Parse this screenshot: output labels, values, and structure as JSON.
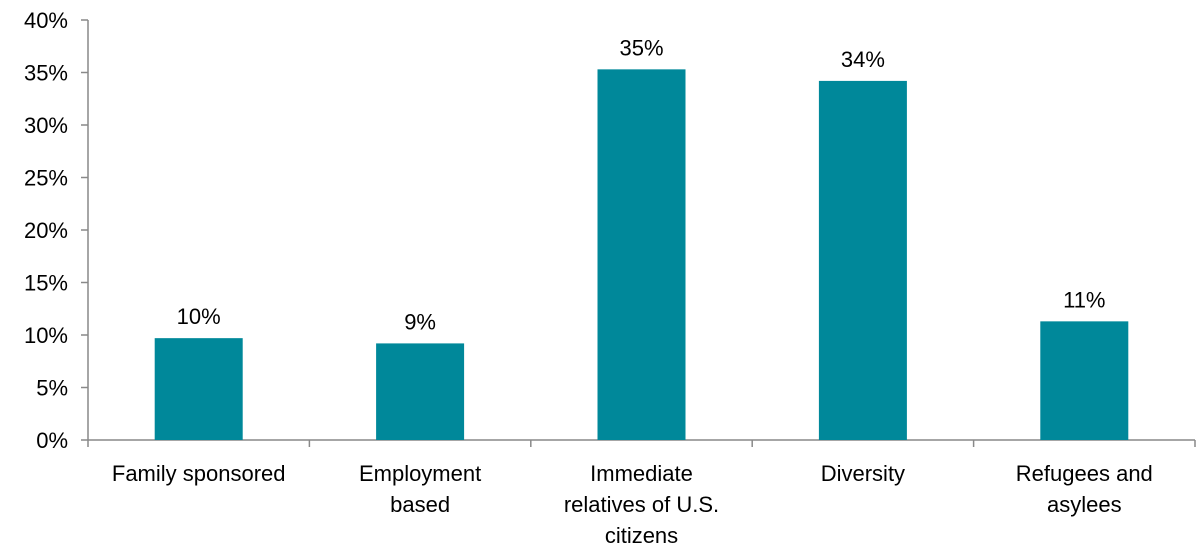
{
  "chart_data": {
    "type": "bar",
    "categories": [
      [
        "Family sponsored"
      ],
      [
        "Employment",
        "based"
      ],
      [
        "Immediate",
        "relatives of U.S.",
        "citizens"
      ],
      [
        "Diversity"
      ],
      [
        "Refugees and",
        "asylees"
      ]
    ],
    "values": [
      9.7,
      9.2,
      35.3,
      34.2,
      11.3
    ],
    "data_labels": [
      "10%",
      "9%",
      "35%",
      "34%",
      "11%"
    ],
    "y_ticks": [
      "0%",
      "5%",
      "10%",
      "15%",
      "20%",
      "25%",
      "30%",
      "35%",
      "40%"
    ],
    "ylim": [
      0,
      40
    ],
    "grid": false,
    "bar_color": "#00889a",
    "axis_color": "#898989"
  }
}
